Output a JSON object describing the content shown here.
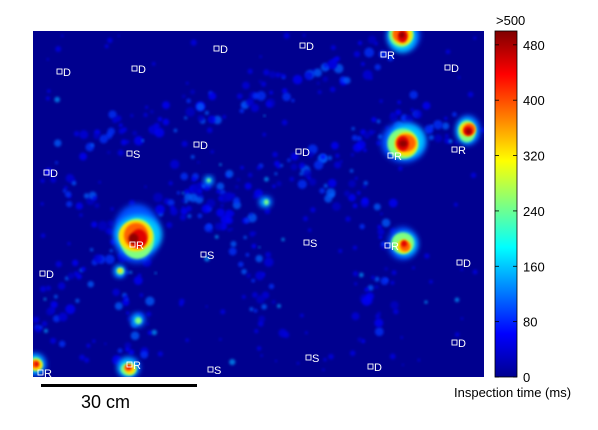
{
  "chart_data": {
    "type": "heatmap",
    "colormap": "jet",
    "background_color": "#00008f",
    "colorbar": {
      "ticks": [
        0,
        80,
        160,
        240,
        320,
        400,
        480
      ],
      "top_label": ">500",
      "range": [
        0,
        500
      ],
      "label": "Inspection time (ms)"
    },
    "scale_bar_label": "30 cm",
    "markers": [
      {
        "label": "D"
      },
      {
        "label": "D"
      },
      {
        "label": "R"
      },
      {
        "label": "D"
      },
      {
        "label": "D"
      },
      {
        "label": "D"
      },
      {
        "label": "S"
      },
      {
        "label": "D"
      },
      {
        "label": "D"
      },
      {
        "label": "R"
      },
      {
        "label": "R"
      },
      {
        "label": "D"
      },
      {
        "label": "R"
      },
      {
        "label": "S"
      },
      {
        "label": "S"
      },
      {
        "label": "R"
      },
      {
        "label": "D"
      },
      {
        "label": "D"
      },
      {
        "label": "D"
      },
      {
        "label": "R"
      },
      {
        "label": "R"
      },
      {
        "label": "S"
      },
      {
        "label": "S"
      },
      {
        "label": "D"
      }
    ]
  }
}
